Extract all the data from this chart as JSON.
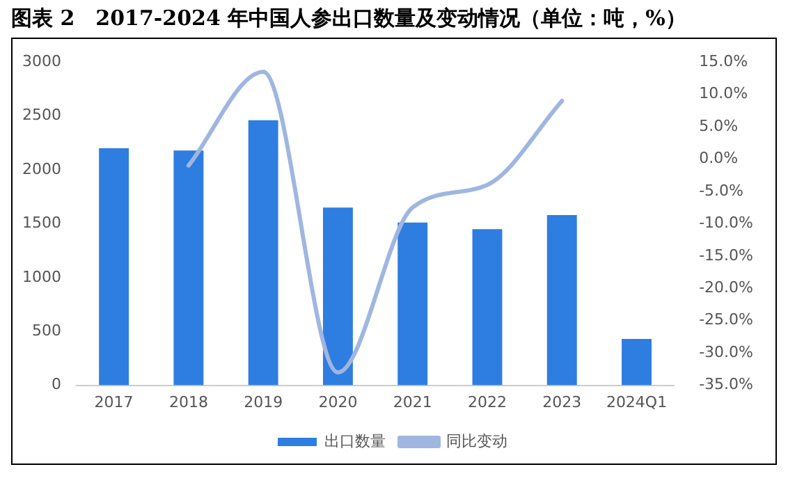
{
  "chart_data": {
    "type": "bar",
    "title": "图表 2　2017-2024 年中国人参出口数量及变动情况（单位：吨，%）",
    "categories": [
      "2017",
      "2018",
      "2019",
      "2020",
      "2021",
      "2022",
      "2023",
      "2024Q1"
    ],
    "series": [
      {
        "name": "出口数量",
        "color": "#2e7de1",
        "values": [
          2200,
          2180,
          2460,
          1650,
          1510,
          1450,
          1580,
          430
        ]
      },
      {
        "name": "同比变动",
        "type": "line",
        "axis": "y2",
        "color": "#9fb6e0",
        "values": [
          null,
          -1.0,
          13.5,
          -33.0,
          -7.5,
          -4.0,
          9.0,
          null
        ]
      }
    ],
    "ylim": [
      0,
      3000
    ],
    "yticks": [
      0,
      500,
      1000,
      1500,
      2000,
      2500,
      3000
    ],
    "y2lim": [
      -35,
      15
    ],
    "y2ticks": [
      {
        "value": -35,
        "label": "-35.0%"
      },
      {
        "value": -30,
        "label": "-30.0%"
      },
      {
        "value": -25,
        "label": "-25.0%"
      },
      {
        "value": -20,
        "label": "-20.0%"
      },
      {
        "value": -15,
        "label": "-15.0%"
      },
      {
        "value": -10,
        "label": "-10.0%"
      },
      {
        "value": -5,
        "label": "-5.0%"
      },
      {
        "value": 0,
        "label": "0.0%"
      },
      {
        "value": 5,
        "label": "5.0%"
      },
      {
        "value": 10,
        "label": "10.0%"
      },
      {
        "value": 15,
        "label": "15.0%"
      }
    ],
    "grid": false,
    "legend": "bottom",
    "marker": "none",
    "line_style": "solid"
  }
}
